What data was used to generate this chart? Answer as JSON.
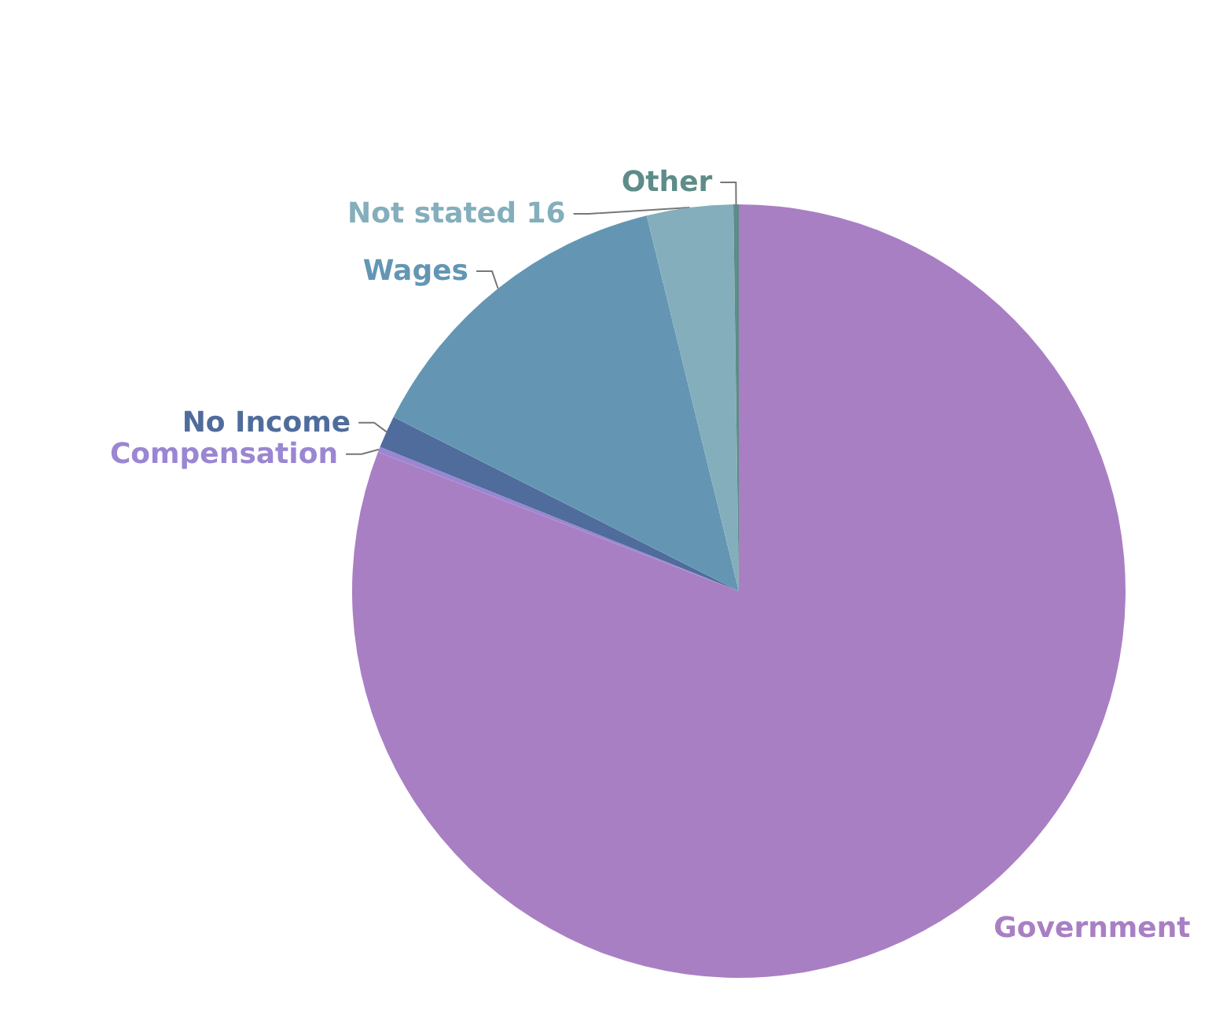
{
  "chart_data": {
    "type": "pie",
    "categories": [
      "Government",
      "Compensation",
      "No Income",
      "Wages",
      "Not stated",
      "Other"
    ],
    "values": [
      359,
      1,
      6,
      61,
      16,
      1
    ],
    "colors": [
      "#a97fc4",
      "#9a86d2",
      "#4f6c9c",
      "#6496b4",
      "#84aebc",
      "#5e8c88"
    ],
    "value_labels": [
      null,
      null,
      null,
      null,
      "16",
      null
    ],
    "legend": false
  }
}
